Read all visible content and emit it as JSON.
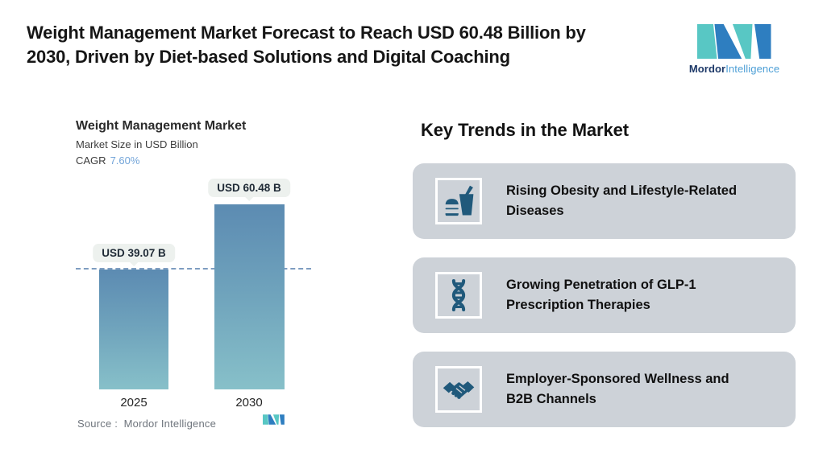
{
  "header": {
    "title_lines": [
      "Weight Management Market Forecast to Reach USD 60.48 Billion by",
      "2030, Driven by Diet-based Solutions and Digital Coaching"
    ],
    "brand": {
      "name_bold": "Mordor",
      "name_light": "Intelligence"
    }
  },
  "chart_data": {
    "type": "bar",
    "title": "Weight Management Market",
    "subtitle": "Market Size in USD Billion",
    "cagr_label": "CAGR",
    "cagr_value": "7.60%",
    "categories": [
      "2025",
      "2030"
    ],
    "values": [
      39.07,
      60.48
    ],
    "value_labels": [
      "USD 39.07 B",
      "USD 60.48 B"
    ],
    "ylabel": "Market Size in USD Billion",
    "gridlines": false,
    "legend": "none",
    "baseline_dashed_at": 39.07,
    "source_label": "Source :",
    "source_value": "Mordor Intelligence"
  },
  "trends": {
    "heading": "Key Trends in the Market",
    "items": [
      {
        "icon": "fast-food-icon",
        "lines": [
          "Rising Obesity and Lifestyle-Related",
          "Diseases"
        ]
      },
      {
        "icon": "dna-icon",
        "lines": [
          "Growing Penetration of GLP-1",
          "Prescription Therapies"
        ]
      },
      {
        "icon": "handshake-icon",
        "lines": [
          "Employer-Sponsored Wellness and",
          "B2B Channels"
        ]
      }
    ]
  },
  "colors": {
    "brand_teal": "#58C7C4",
    "brand_blue": "#2E7EC0",
    "brand_navy": "#1D3968",
    "brand_lightblue": "#4D9FD6",
    "bar_gradient_top": "#5C8BB2",
    "bar_gradient_bottom": "#87C0C9",
    "dashed_line": "#7E9DC1",
    "cagr_value_color": "#73A5D9",
    "card_background": "#CDD2D8",
    "icon_color": "#20597B",
    "value_pill_background": "#EDF1EE"
  }
}
